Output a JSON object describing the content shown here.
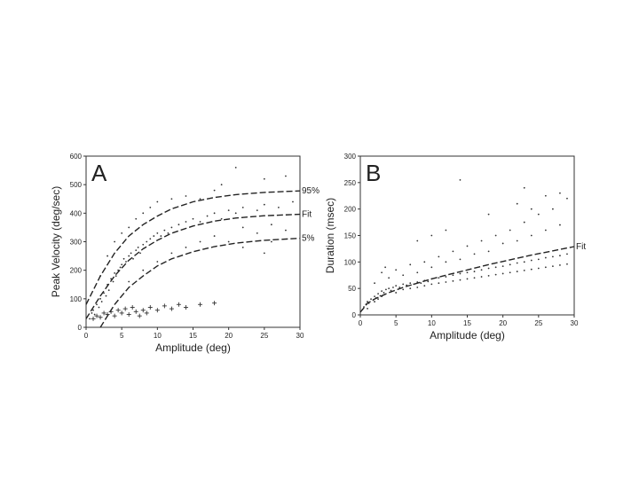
{
  "chart_data": [
    {
      "type": "scatter",
      "panel_label": "A",
      "xlabel": "Amplitude (deg)",
      "ylabel": "Peak Velocity (deg/sec)",
      "xlim": [
        0,
        30
      ],
      "ylim": [
        0,
        600
      ],
      "xticks": [
        0,
        5,
        10,
        15,
        20,
        25,
        30
      ],
      "yticks": [
        0,
        100,
        200,
        300,
        400,
        500,
        600
      ],
      "grid": false,
      "series": [
        {
          "marker": "dot",
          "points": [
            [
              0.5,
              30
            ],
            [
              0.8,
              50
            ],
            [
              1,
              60
            ],
            [
              1.2,
              45
            ],
            [
              1.5,
              80
            ],
            [
              1.8,
              70
            ],
            [
              2,
              100
            ],
            [
              2.2,
              90
            ],
            [
              2.5,
              120
            ],
            [
              2.8,
              110
            ],
            [
              3,
              150
            ],
            [
              3.2,
              130
            ],
            [
              3.5,
              170
            ],
            [
              3.8,
              160
            ],
            [
              4,
              190
            ],
            [
              4.2,
              180
            ],
            [
              4.5,
              200
            ],
            [
              4.8,
              210
            ],
            [
              5,
              220
            ],
            [
              5.3,
              240
            ],
            [
              5.6,
              230
            ],
            [
              6,
              250
            ],
            [
              6.3,
              260
            ],
            [
              6.6,
              240
            ],
            [
              7,
              270
            ],
            [
              7.3,
              280
            ],
            [
              7.6,
              260
            ],
            [
              8,
              290
            ],
            [
              8.5,
              300
            ],
            [
              9,
              310
            ],
            [
              9.5,
              320
            ],
            [
              10,
              330
            ],
            [
              10.5,
              320
            ],
            [
              11,
              340
            ],
            [
              11.5,
              330
            ],
            [
              12,
              350
            ],
            [
              13,
              360
            ],
            [
              14,
              370
            ],
            [
              15,
              380
            ],
            [
              16,
              370
            ],
            [
              17,
              390
            ],
            [
              18,
              400
            ],
            [
              19,
              380
            ],
            [
              20,
              410
            ],
            [
              21,
              400
            ],
            [
              22,
              420
            ],
            [
              24,
              410
            ],
            [
              25,
              430
            ],
            [
              27,
              420
            ],
            [
              29,
              440
            ],
            [
              3,
              250
            ],
            [
              4,
              300
            ],
            [
              5,
              330
            ],
            [
              6,
              350
            ],
            [
              7,
              380
            ],
            [
              8,
              400
            ],
            [
              9,
              420
            ],
            [
              10,
              440
            ],
            [
              12,
              450
            ],
            [
              14,
              460
            ],
            [
              2,
              180
            ],
            [
              6,
              160
            ],
            [
              8,
              200
            ],
            [
              10,
              230
            ],
            [
              12,
              260
            ],
            [
              14,
              280
            ],
            [
              16,
              300
            ],
            [
              18,
              320
            ],
            [
              20,
              300
            ],
            [
              22,
              350
            ],
            [
              24,
              330
            ],
            [
              26,
              360
            ],
            [
              28,
              340
            ],
            [
              21,
              560
            ],
            [
              19,
              500
            ],
            [
              25,
              520
            ],
            [
              28,
              530
            ],
            [
              16,
              450
            ],
            [
              18,
              480
            ],
            [
              22,
              280
            ],
            [
              25,
              260
            ],
            [
              26,
              300
            ]
          ]
        },
        {
          "marker": "plus",
          "points": [
            [
              1,
              30
            ],
            [
              1.5,
              40
            ],
            [
              2,
              35
            ],
            [
              2.5,
              50
            ],
            [
              3,
              45
            ],
            [
              3.5,
              55
            ],
            [
              4,
              40
            ],
            [
              4.5,
              60
            ],
            [
              5,
              50
            ],
            [
              5.5,
              65
            ],
            [
              6,
              45
            ],
            [
              6.5,
              70
            ],
            [
              7,
              55
            ],
            [
              7.5,
              40
            ],
            [
              8,
              60
            ],
            [
              8.5,
              50
            ],
            [
              9,
              70
            ],
            [
              10,
              60
            ],
            [
              11,
              75
            ],
            [
              12,
              65
            ],
            [
              13,
              80
            ],
            [
              14,
              70
            ],
            [
              16,
              80
            ],
            [
              18,
              85
            ]
          ]
        }
      ],
      "curves": [
        {
          "name": "95%",
          "points": [
            [
              0,
              80
            ],
            [
              2,
              180
            ],
            [
              4,
              260
            ],
            [
              6,
              320
            ],
            [
              8,
              360
            ],
            [
              10,
              390
            ],
            [
              12,
              415
            ],
            [
              15,
              440
            ],
            [
              18,
              455
            ],
            [
              21,
              465
            ],
            [
              25,
              473
            ],
            [
              30,
              478
            ]
          ]
        },
        {
          "name": "Fit",
          "points": [
            [
              0,
              30
            ],
            [
              2,
              110
            ],
            [
              4,
              180
            ],
            [
              6,
              235
            ],
            [
              8,
              275
            ],
            [
              10,
              305
            ],
            [
              12,
              330
            ],
            [
              15,
              355
            ],
            [
              18,
              372
            ],
            [
              21,
              383
            ],
            [
              25,
              391
            ],
            [
              30,
              396
            ]
          ]
        },
        {
          "name": "5%",
          "points": [
            [
              2,
              0
            ],
            [
              4,
              80
            ],
            [
              6,
              140
            ],
            [
              8,
              180
            ],
            [
              10,
              215
            ],
            [
              12,
              240
            ],
            [
              15,
              265
            ],
            [
              18,
              283
            ],
            [
              21,
              295
            ],
            [
              25,
              305
            ],
            [
              30,
              312
            ]
          ]
        }
      ]
    },
    {
      "type": "scatter",
      "panel_label": "B",
      "xlabel": "Amplitude (deg)",
      "ylabel": "Duration (msec)",
      "xlim": [
        0,
        30
      ],
      "ylim": [
        0,
        300
      ],
      "xticks": [
        0,
        5,
        10,
        15,
        20,
        25,
        30
      ],
      "yticks": [
        0,
        50,
        100,
        150,
        200,
        250,
        300
      ],
      "grid": false,
      "series": [
        {
          "marker": "dot",
          "points": [
            [
              0.3,
              10
            ],
            [
              0.5,
              15
            ],
            [
              0.8,
              20
            ],
            [
              1,
              25
            ],
            [
              1.2,
              22
            ],
            [
              1.5,
              30
            ],
            [
              1.8,
              28
            ],
            [
              2,
              35
            ],
            [
              2.2,
              32
            ],
            [
              2.5,
              40
            ],
            [
              2.8,
              36
            ],
            [
              3,
              45
            ],
            [
              3.3,
              42
            ],
            [
              3.6,
              48
            ],
            [
              4,
              50
            ],
            [
              4.3,
              46
            ],
            [
              4.6,
              52
            ],
            [
              5,
              55
            ],
            [
              5.5,
              52
            ],
            [
              6,
              58
            ],
            [
              6.5,
              56
            ],
            [
              7,
              60
            ],
            [
              7.5,
              58
            ],
            [
              8,
              62
            ],
            [
              8.5,
              60
            ],
            [
              9,
              65
            ],
            [
              9.5,
              63
            ],
            [
              10,
              68
            ],
            [
              11,
              70
            ],
            [
              12,
              72
            ],
            [
              13,
              75
            ],
            [
              14,
              78
            ],
            [
              15,
              80
            ],
            [
              16,
              82
            ],
            [
              17,
              85
            ],
            [
              18,
              88
            ],
            [
              19,
              90
            ],
            [
              20,
              92
            ],
            [
              21,
              95
            ],
            [
              22,
              98
            ],
            [
              23,
              100
            ],
            [
              24,
              103
            ],
            [
              25,
              105
            ],
            [
              26,
              108
            ],
            [
              27,
              110
            ],
            [
              28,
              112
            ],
            [
              29,
              115
            ],
            [
              2,
              60
            ],
            [
              3,
              80
            ],
            [
              3.5,
              90
            ],
            [
              4,
              70
            ],
            [
              5,
              85
            ],
            [
              6,
              75
            ],
            [
              7,
              95
            ],
            [
              8,
              80
            ],
            [
              9,
              100
            ],
            [
              10,
              90
            ],
            [
              11,
              110
            ],
            [
              12,
              100
            ],
            [
              13,
              120
            ],
            [
              14,
              105
            ],
            [
              15,
              130
            ],
            [
              16,
              115
            ],
            [
              17,
              140
            ],
            [
              18,
              120
            ],
            [
              19,
              150
            ],
            [
              20,
              135
            ],
            [
              21,
              160
            ],
            [
              22,
              140
            ],
            [
              23,
              175
            ],
            [
              24,
              150
            ],
            [
              25,
              190
            ],
            [
              26,
              160
            ],
            [
              27,
              200
            ],
            [
              28,
              170
            ],
            [
              29,
              220
            ],
            [
              22,
              210
            ],
            [
              23,
              240
            ],
            [
              26,
              225
            ],
            [
              28,
              230
            ],
            [
              14,
              255
            ],
            [
              12,
              160
            ],
            [
              10,
              150
            ],
            [
              8,
              140
            ],
            [
              18,
              190
            ],
            [
              24,
              200
            ],
            [
              2,
              25
            ],
            [
              2.5,
              30
            ],
            [
              3,
              35
            ],
            [
              1,
              12
            ],
            [
              5,
              42
            ],
            [
              6,
              48
            ],
            [
              7,
              50
            ],
            [
              8,
              52
            ],
            [
              9,
              55
            ],
            [
              10,
              58
            ],
            [
              11,
              60
            ],
            [
              12,
              62
            ],
            [
              13,
              64
            ],
            [
              14,
              66
            ],
            [
              15,
              68
            ],
            [
              16,
              70
            ],
            [
              17,
              72
            ],
            [
              18,
              74
            ],
            [
              19,
              76
            ],
            [
              20,
              78
            ],
            [
              21,
              80
            ],
            [
              22,
              82
            ],
            [
              23,
              84
            ],
            [
              24,
              86
            ],
            [
              25,
              88
            ],
            [
              26,
              90
            ],
            [
              27,
              92
            ],
            [
              28,
              94
            ],
            [
              29,
              96
            ]
          ]
        }
      ],
      "curves": [
        {
          "name": "Fit",
          "points": [
            [
              0,
              5
            ],
            [
              1,
              22
            ],
            [
              2,
              30
            ],
            [
              4,
              42
            ],
            [
              6,
              52
            ],
            [
              8,
              60
            ],
            [
              10,
              68
            ],
            [
              12,
              75
            ],
            [
              15,
              85
            ],
            [
              18,
              95
            ],
            [
              21,
              104
            ],
            [
              24,
              113
            ],
            [
              27,
              121
            ],
            [
              30,
              129
            ]
          ]
        }
      ]
    }
  ]
}
